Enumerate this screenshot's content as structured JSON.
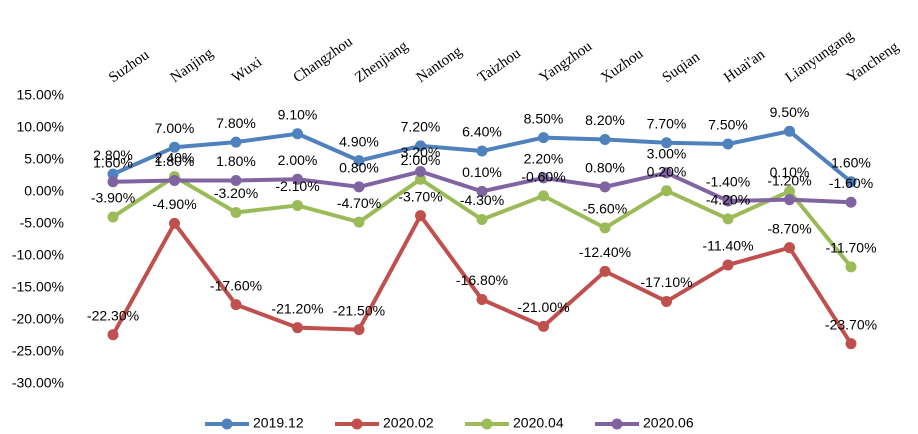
{
  "chart_data": {
    "type": "line",
    "categories": [
      "Suzhou",
      "Nanjing",
      "Wuxi",
      "Changzhou",
      "Zhenjiang",
      "Nantong",
      "Taizhou",
      "Yangzhou",
      "Xuzhou",
      "Suqian",
      "Huai'an",
      "Lianyungang",
      "Yancheng"
    ],
    "series": [
      {
        "name": "2019.12",
        "color": "#4f81bd",
        "values": [
          2.8,
          7.0,
          7.8,
          9.1,
          4.9,
          7.2,
          6.4,
          8.5,
          8.2,
          7.7,
          7.5,
          9.5,
          1.6
        ],
        "value_labels": [
          "2.80%",
          "7.00%",
          "7.80%",
          "9.10%",
          "4.90%",
          "7.20%",
          "6.40%",
          "8.50%",
          "8.20%",
          "7.70%",
          "7.50%",
          "9.50%",
          "1.60%"
        ]
      },
      {
        "name": "2020.02",
        "color": "#c0504d",
        "values": [
          -22.3,
          -4.9,
          -17.6,
          -21.2,
          -21.5,
          -3.7,
          -16.8,
          -21.0,
          -12.4,
          -17.1,
          -11.4,
          -8.7,
          -23.7
        ],
        "value_labels": [
          "-22.30%",
          "-4.90%",
          "-17.60%",
          "-21.20%",
          "-21.50%",
          "-3.70%",
          "-16.80%",
          "-21.00%",
          "-12.40%",
          "-17.10%",
          "-11.40%",
          "-8.70%",
          "-23.70%"
        ]
      },
      {
        "name": "2020.04",
        "color": "#9bbb59",
        "values": [
          -3.9,
          2.4,
          -3.2,
          -2.1,
          -4.7,
          2.0,
          -4.3,
          -0.6,
          -5.6,
          0.2,
          -4.2,
          0.1,
          -11.7
        ],
        "value_labels": [
          "-3.90%",
          "2.40%",
          "-3.20%",
          "-2.10%",
          "-4.70%",
          "2.00%",
          "-4.30%",
          "-0.60%",
          "-5.60%",
          "0.20%",
          "-4.20%",
          "0.10%",
          "-11.70%"
        ]
      },
      {
        "name": "2020.06",
        "color": "#8064a2",
        "values": [
          1.6,
          1.8,
          1.8,
          2.0,
          0.8,
          3.2,
          0.1,
          2.2,
          0.8,
          3.0,
          -1.4,
          -1.2,
          -1.6
        ],
        "value_labels": [
          "1.60%",
          "1.80%",
          "1.80%",
          "2.00%",
          "0.80%",
          "3.20%",
          "0.10%",
          "2.20%",
          "0.80%",
          "3.00%",
          "-1.40%",
          "-1.20%",
          "-1.60%"
        ]
      }
    ],
    "ylim": [
      -30,
      15
    ],
    "yticks": [
      {
        "value": 15,
        "label": "15.00%"
      },
      {
        "value": 10,
        "label": "10.00%"
      },
      {
        "value": 5,
        "label": "5.00%"
      },
      {
        "value": 0,
        "label": "0.00%"
      },
      {
        "value": -5,
        "label": "-5.00%"
      },
      {
        "value": -10,
        "label": "-10.00%"
      },
      {
        "value": -15,
        "label": "-15.00%"
      },
      {
        "value": -20,
        "label": "-20.00%"
      },
      {
        "value": -25,
        "label": "-25.00%"
      },
      {
        "value": -30,
        "label": "-30.00%"
      }
    ],
    "legend": "bottom"
  }
}
